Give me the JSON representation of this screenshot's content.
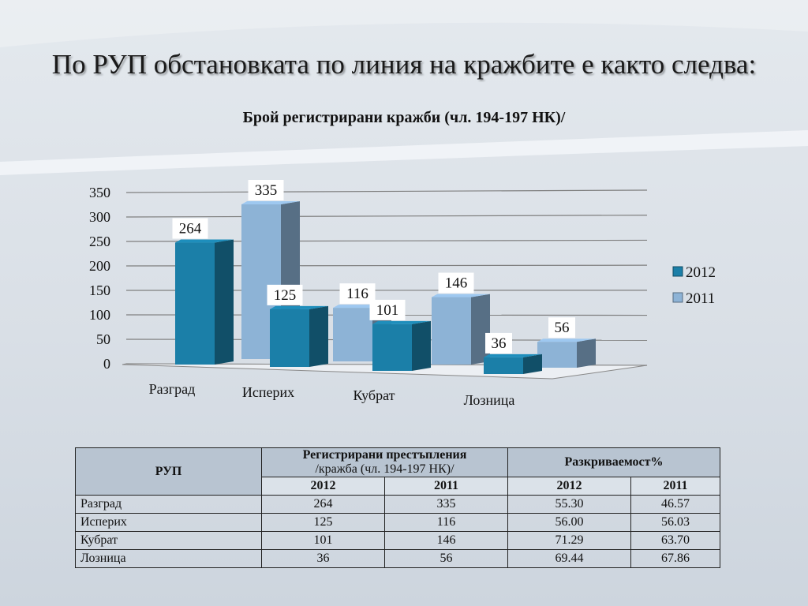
{
  "slide": {
    "title": "По РУП обстановката по линия на кражбите е както следва:"
  },
  "chart_data": {
    "type": "bar",
    "title": "Брой регистрирани кражби (чл. 194-197 НК)/",
    "categories": [
      "Разград",
      "Исперих",
      "Кубрат",
      "Лозница"
    ],
    "series": [
      {
        "name": "2012",
        "values": [
          264,
          125,
          101,
          36
        ],
        "color": "#1b7fa8"
      },
      {
        "name": "2011",
        "values": [
          335,
          116,
          146,
          56
        ],
        "color": "#8db3d6"
      }
    ],
    "ylim": [
      0,
      350
    ],
    "yticks": [
      "0",
      "50",
      "100",
      "150",
      "200",
      "250",
      "300",
      "350"
    ],
    "grid": true,
    "legend": "right",
    "data_labels": true
  },
  "table": {
    "header_rup": "РУП",
    "header_registered_line1": "Регистрирани престъпления",
    "header_registered_line2": "/кражба (чл. 194-197 НК)/",
    "header_rate": "Разкриваемост%",
    "years": [
      "2012",
      "2011",
      "2012",
      "2011"
    ],
    "rows": [
      {
        "name": "Разград",
        "reg2012": "264",
        "reg2011": "335",
        "rate2012": "55.30",
        "rate2011": "46.57"
      },
      {
        "name": "Исперих",
        "reg2012": "125",
        "reg2011": "116",
        "rate2012": "56.00",
        "rate2011": "56.03"
      },
      {
        "name": "Кубрат",
        "reg2012": "101",
        "reg2011": "146",
        "rate2012": "71.29",
        "rate2011": "63.70"
      },
      {
        "name": "Лозница",
        "reg2012": "36",
        "reg2011": "56",
        "rate2012": "69.44",
        "rate2011": "67.86"
      }
    ]
  }
}
